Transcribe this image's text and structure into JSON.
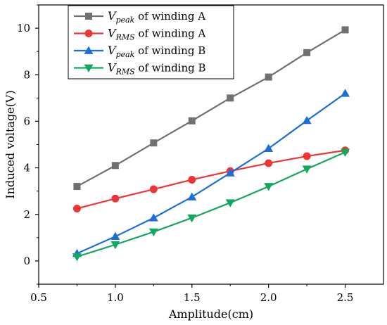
{
  "chart_data": {
    "type": "line",
    "xlabel": "Amplitude(cm)",
    "ylabel": "Induced voltage(V)",
    "xlim": [
      0.5,
      2.75
    ],
    "ylim": [
      -1,
      11
    ],
    "x_ticks": [
      "0.5",
      "1.0",
      "1.5",
      "2.0",
      "2.5"
    ],
    "y_ticks": [
      "0",
      "2",
      "4",
      "6",
      "8",
      "10"
    ],
    "x_tick_values": [
      0.5,
      1.0,
      1.5,
      2.0,
      2.5
    ],
    "y_tick_values": [
      0,
      2,
      4,
      6,
      8,
      10
    ],
    "grid": false,
    "legend_position": "top-left",
    "x": [
      0.75,
      1.0,
      1.25,
      1.5,
      1.75,
      2.0,
      2.25,
      2.5
    ],
    "series": [
      {
        "name": "Vpeak of winding A",
        "legend": {
          "v": "V",
          "sub": "peak",
          "rest": " of winding A"
        },
        "color": "#707070",
        "marker": "square",
        "values": [
          3.2,
          4.1,
          5.07,
          6.02,
          7.0,
          7.9,
          8.95,
          9.93
        ]
      },
      {
        "name": "VRMS of winding A",
        "legend": {
          "v": "V",
          "sub": "RMS",
          "rest": " of winding A"
        },
        "color": "#ee3434",
        "marker": "circle",
        "values": [
          2.25,
          2.68,
          3.08,
          3.49,
          3.86,
          4.2,
          4.5,
          4.75
        ]
      },
      {
        "name": "Vpeak of winding B",
        "legend": {
          "v": "V",
          "sub": "peak",
          "rest": " of winding B"
        },
        "color": "#1c6fd8",
        "marker": "triangle-up",
        "values": [
          0.32,
          1.05,
          1.85,
          2.75,
          3.78,
          4.83,
          6.03,
          7.2
        ]
      },
      {
        "name": "VRMS of winding B",
        "legend": {
          "v": "V",
          "sub": "RMS",
          "rest": " of winding B"
        },
        "color": "#13a860",
        "marker": "triangle-down",
        "values": [
          0.18,
          0.7,
          1.25,
          1.85,
          2.5,
          3.2,
          3.95,
          4.67
        ]
      }
    ]
  }
}
